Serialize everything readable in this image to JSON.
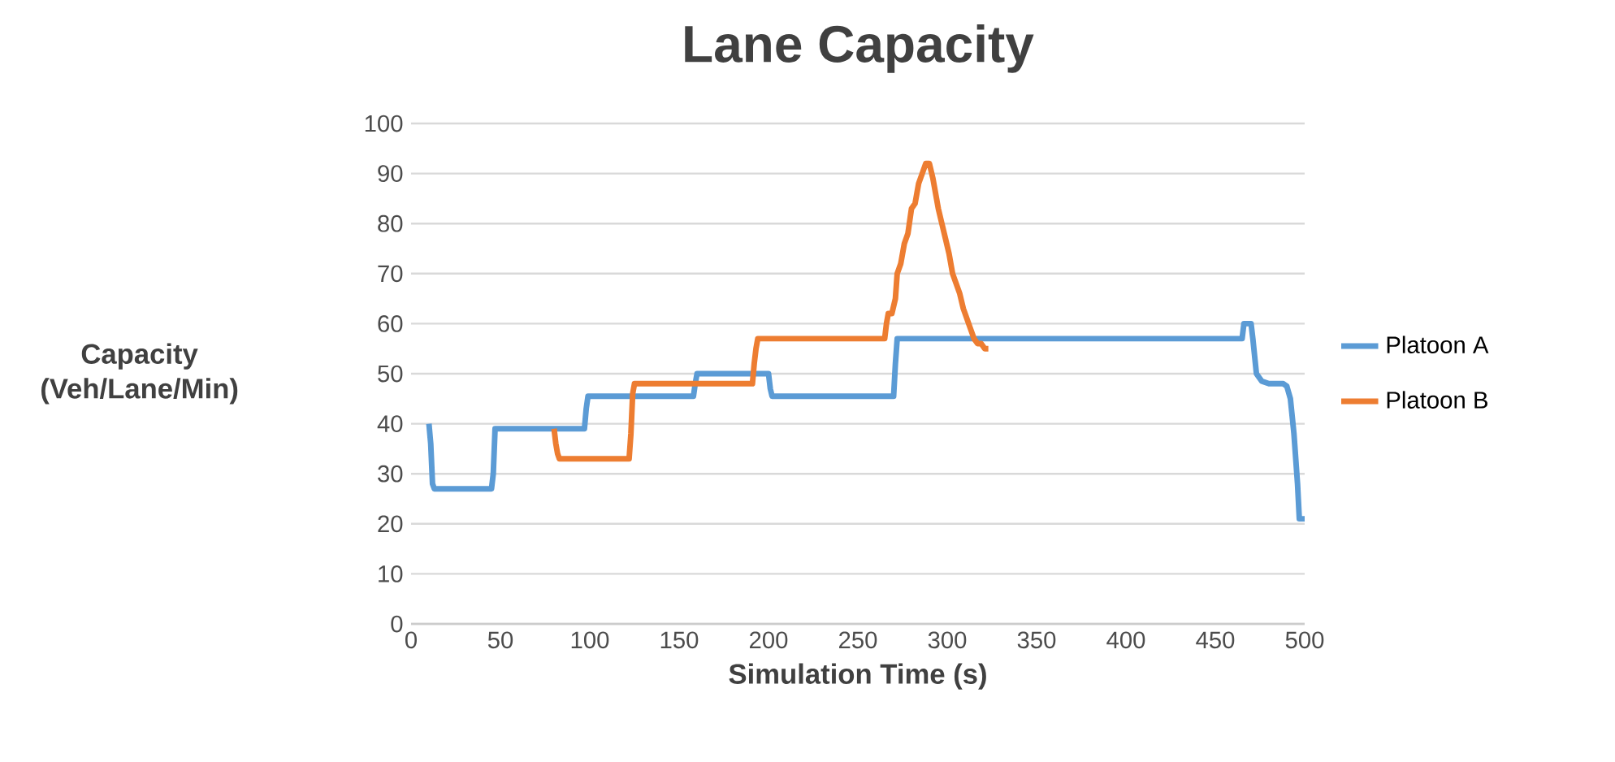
{
  "chart_data": {
    "type": "line",
    "title": "Lane Capacity",
    "xlabel": "Simulation Time (s)",
    "ylabel": "Capacity (Veh/Lane/Min)",
    "xlim": [
      0,
      500
    ],
    "xticks": [
      0,
      50,
      100,
      150,
      200,
      250,
      300,
      350,
      400,
      450,
      500
    ],
    "ylim": [
      0,
      100
    ],
    "yticks": [
      0,
      10,
      20,
      30,
      40,
      50,
      60,
      70,
      80,
      90,
      100
    ],
    "grid": "y",
    "legend": "right",
    "marker": "none",
    "line_style": "solid",
    "series": [
      {
        "name": "Platoon A",
        "color": "#5b9bd5",
        "x": [
          10,
          11,
          12,
          13,
          45,
          46,
          47,
          97,
          98,
          99,
          158,
          159,
          160,
          200,
          201,
          202,
          270,
          271,
          272,
          465,
          466,
          470,
          471,
          473,
          476,
          480,
          488,
          490,
          492,
          494,
          496,
          497,
          500
        ],
        "values": [
          40,
          36,
          28,
          27,
          27,
          30,
          39,
          39,
          43,
          45.5,
          45.5,
          48,
          50,
          50,
          47,
          45.5,
          45.5,
          52,
          57,
          57,
          60,
          60,
          57,
          50,
          48.5,
          48,
          48,
          47.5,
          45,
          38,
          28,
          21,
          21
        ]
      },
      {
        "name": "Platoon B",
        "color": "#ed7d31",
        "x": [
          80,
          81,
          82,
          83,
          122,
          123,
          124,
          125,
          191,
          192,
          193,
          194,
          265,
          266,
          267,
          269,
          271,
          272,
          274,
          276,
          278,
          280,
          282,
          284,
          286,
          288,
          290,
          292,
          294,
          295,
          297,
          299,
          301,
          303,
          305,
          307,
          309,
          311,
          313,
          315,
          317,
          319,
          321,
          323
        ],
        "values": [
          39,
          36,
          34,
          33,
          33,
          38,
          46,
          48,
          48,
          52,
          55,
          57,
          57,
          60,
          62,
          62,
          65,
          70,
          72,
          76,
          78,
          83,
          84,
          88,
          90,
          92,
          92,
          89,
          85,
          83,
          80,
          77,
          74,
          70,
          68,
          66,
          63,
          61,
          59,
          57,
          56,
          56,
          55,
          55
        ]
      }
    ]
  }
}
